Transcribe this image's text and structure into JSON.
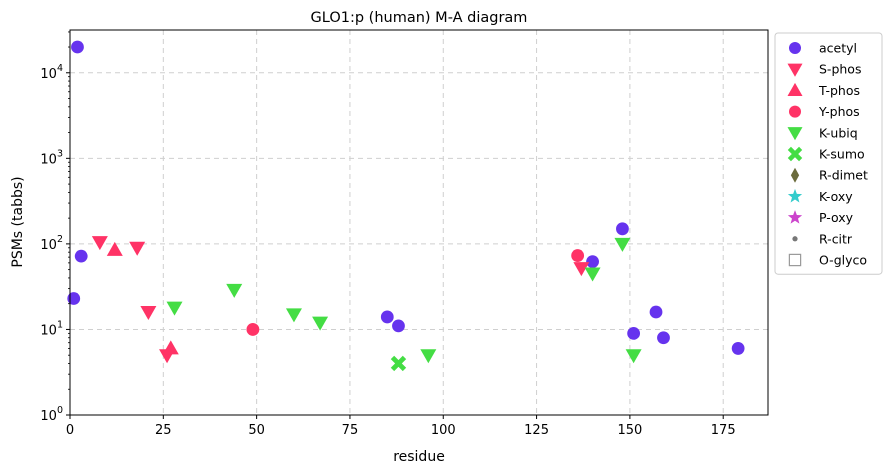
{
  "chart_data": {
    "type": "scatter",
    "title": "GLO1:p (human) M-A diagram",
    "xlabel": "residue",
    "ylabel": "PSMs (tabbs)",
    "xlim": [
      0,
      187
    ],
    "ylim": [
      1,
      31622
    ],
    "yscale": "log",
    "grid": true,
    "legend_position": "outside-right",
    "x_ticks": [
      0,
      25,
      50,
      75,
      100,
      125,
      150,
      175
    ],
    "y_ticks": [
      {
        "value": 1,
        "base": "10",
        "exp": "0"
      },
      {
        "value": 10,
        "base": "10",
        "exp": "1"
      },
      {
        "value": 100,
        "base": "10",
        "exp": "2"
      },
      {
        "value": 1000,
        "base": "10",
        "exp": "3"
      },
      {
        "value": 10000,
        "base": "10",
        "exp": "4"
      }
    ],
    "series": [
      {
        "name": "acetyl",
        "marker": "circle",
        "color": "#6633ee",
        "points": [
          [
            1,
            23
          ],
          [
            2,
            20000
          ],
          [
            3,
            72
          ],
          [
            85,
            14
          ],
          [
            88,
            11
          ],
          [
            140,
            62
          ],
          [
            148,
            150
          ],
          [
            151,
            9
          ],
          [
            157,
            16
          ],
          [
            159,
            8
          ],
          [
            179,
            6
          ]
        ]
      },
      {
        "name": "S-phos",
        "marker": "triangle-down",
        "color": "#ff3366",
        "points": [
          [
            8,
            105
          ],
          [
            18,
            90
          ],
          [
            21,
            16
          ],
          [
            26,
            5
          ],
          [
            137,
            52
          ]
        ]
      },
      {
        "name": "T-phos",
        "marker": "triangle-up",
        "color": "#ff3366",
        "points": [
          [
            12,
            85
          ],
          [
            27,
            6
          ]
        ]
      },
      {
        "name": "Y-phos",
        "marker": "circle",
        "color": "#ff3366",
        "points": [
          [
            49,
            10
          ],
          [
            136,
            73
          ]
        ]
      },
      {
        "name": "K-ubiq",
        "marker": "triangle-down",
        "color": "#44dd44",
        "points": [
          [
            28,
            18
          ],
          [
            44,
            29
          ],
          [
            60,
            15
          ],
          [
            67,
            12
          ],
          [
            96,
            5
          ],
          [
            140,
            45
          ],
          [
            148,
            100
          ],
          [
            151,
            5
          ]
        ]
      },
      {
        "name": "K-sumo",
        "marker": "x",
        "color": "#44dd44",
        "points": [
          [
            88,
            4
          ]
        ]
      },
      {
        "name": "R-dimet",
        "marker": "diamond",
        "color": "#6b6b3c",
        "points": []
      },
      {
        "name": "K-oxy",
        "marker": "star",
        "color": "#33cccc",
        "points": []
      },
      {
        "name": "P-oxy",
        "marker": "star",
        "color": "#cc44cc",
        "points": []
      },
      {
        "name": "R-citr",
        "marker": "dot",
        "color": "#777777",
        "points": []
      },
      {
        "name": "O-glyco",
        "marker": "square-open",
        "color": "#999999",
        "points": []
      }
    ]
  }
}
